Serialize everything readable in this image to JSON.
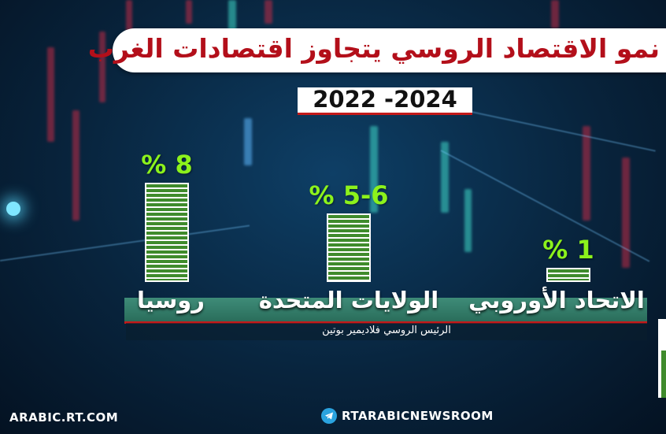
{
  "header": {
    "title": "نمو الاقتصاد الروسي يتجاوز اقتصادات الغرب",
    "period": "2022 -2024"
  },
  "chart_data": {
    "type": "bar",
    "categories": [
      "روسيا",
      "الولايات المتحدة",
      "الاتحاد الأوروبي"
    ],
    "values": [
      8,
      5.5,
      1
    ],
    "value_labels": [
      "% 8",
      "% 5-6",
      "% 1"
    ],
    "unit": "%",
    "title": "نمو الاقتصاد الروسي يتجاوز اقتصادات الغرب",
    "xlabel": "",
    "ylabel": "",
    "ylim": [
      0,
      8
    ],
    "colors": {
      "bar": "#3f8b2c",
      "stripe": "#ffffff",
      "value_label": "#8cf21c"
    }
  },
  "caption": "الرئيس الروسي فلاديمير بوتين",
  "footer": {
    "brand_left": "ARABIC.RT.COM",
    "brand_right": "RTARABICNEWSROOM",
    "brand_right_icon": "telegram-icon"
  },
  "colors": {
    "title_text": "#b30f1a",
    "accent_red": "#c41a1a",
    "background": "#08243d"
  }
}
